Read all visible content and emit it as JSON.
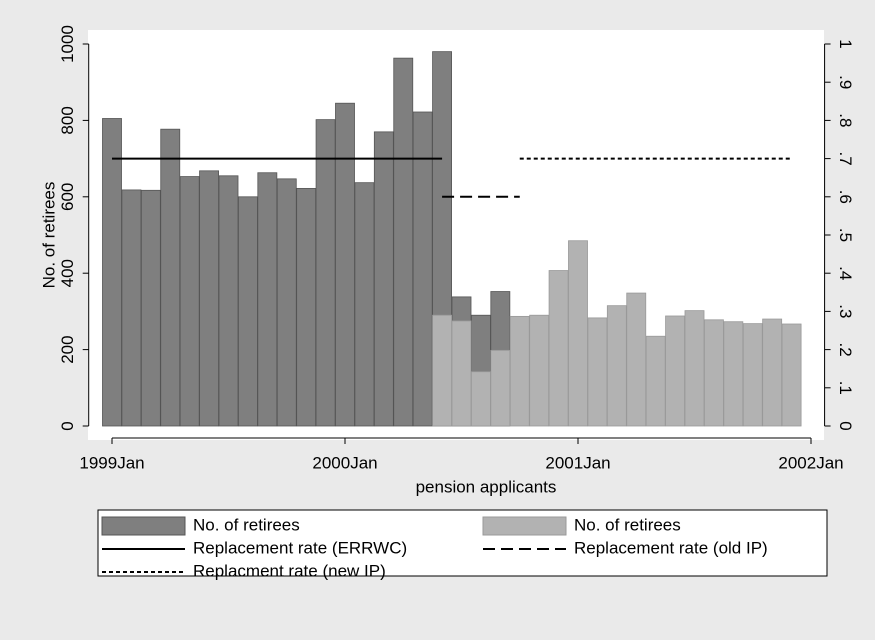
{
  "chart_data": {
    "type": "bar-line",
    "x_label": "pension applicants",
    "y_label": "No. of retirees",
    "x": [
      468,
      469,
      470,
      471,
      472,
      473,
      474,
      475,
      476,
      477,
      478,
      479,
      480,
      481,
      482,
      483,
      484,
      485,
      486,
      487,
      488,
      489,
      490,
      491,
      492,
      493,
      494,
      495,
      496,
      497,
      498,
      499,
      500,
      501,
      502,
      503
    ],
    "xlim": [
      466.8,
      504.7
    ],
    "xticks": [
      {
        "value": 468,
        "label": "1999Jan"
      },
      {
        "value": 480,
        "label": "2000Jan"
      },
      {
        "value": 492,
        "label": "2001Jan"
      },
      {
        "value": 504,
        "label": "2002Jan"
      }
    ],
    "ylim": [
      0,
      1000
    ],
    "yticks": [
      0,
      200,
      400,
      600,
      800,
      1000
    ],
    "y2lim": [
      0,
      1
    ],
    "y2ticks": [
      0,
      {
        "value": 0.1,
        "label": ".1"
      },
      {
        "value": 0.2,
        "label": ".2"
      },
      {
        "value": 0.3,
        "label": ".3"
      },
      {
        "value": 0.4,
        "label": ".4"
      },
      {
        "value": 0.5,
        "label": ".5"
      },
      {
        "value": 0.6,
        "label": ".6"
      },
      {
        "value": 0.7,
        "label": ".7"
      },
      {
        "value": 0.8,
        "label": ".8"
      },
      {
        "value": 0.9,
        "label": ".9"
      },
      1
    ],
    "series": [
      {
        "name": "No. of retirees",
        "kind": "bar",
        "color": "#7f7f7f",
        "values": [
          805,
          618,
          617,
          777,
          653,
          668,
          655,
          600,
          663,
          647,
          622,
          802,
          845,
          637,
          770,
          963,
          822,
          980,
          338,
          290,
          352,
          null,
          null,
          null,
          null,
          null,
          null,
          null,
          null,
          null,
          null,
          null,
          null,
          null,
          null,
          null
        ]
      },
      {
        "name": "No. of retirees",
        "kind": "bar",
        "color": "#b2b2b2",
        "values": [
          null,
          null,
          null,
          null,
          null,
          null,
          null,
          null,
          null,
          null,
          null,
          null,
          null,
          null,
          null,
          null,
          null,
          290,
          275,
          142,
          198,
          287,
          290,
          407,
          485,
          283,
          315,
          348,
          235,
          288,
          302,
          278,
          273,
          268,
          280,
          267
        ]
      },
      {
        "name": "Replacement rate (ERRWC)",
        "kind": "line",
        "axis": "y2",
        "color": "#000000",
        "dash": "solid",
        "values": [
          0.7,
          0.7,
          0.7,
          0.7,
          0.7,
          0.7,
          0.7,
          0.7,
          0.7,
          0.7,
          0.7,
          0.7,
          0.7,
          0.7,
          0.7,
          0.7,
          0.7,
          0.7,
          null,
          null,
          null,
          null,
          null,
          null,
          null,
          null,
          null,
          null,
          null,
          null,
          null,
          null,
          null,
          null,
          null,
          null
        ]
      },
      {
        "name": "Replacement rate (old IP)",
        "kind": "line",
        "axis": "y2",
        "color": "#000000",
        "dash": "dashed",
        "values": [
          null,
          null,
          null,
          null,
          null,
          null,
          null,
          null,
          null,
          null,
          null,
          null,
          null,
          null,
          null,
          null,
          null,
          0.6,
          0.6,
          0.6,
          0.6,
          0.6,
          null,
          null,
          null,
          null,
          null,
          null,
          null,
          null,
          null,
          null,
          null,
          null,
          null,
          null
        ]
      },
      {
        "name": "Replacment rate (new IP)",
        "kind": "line",
        "axis": "y2",
        "color": "#000000",
        "dash": "dotted",
        "values": [
          null,
          null,
          null,
          null,
          null,
          null,
          null,
          null,
          null,
          null,
          null,
          null,
          null,
          null,
          null,
          null,
          null,
          null,
          null,
          null,
          null,
          0.7,
          0.7,
          0.7,
          0.7,
          0.7,
          0.7,
          0.7,
          0.7,
          0.7,
          0.7,
          0.7,
          0.7,
          0.7,
          0.7,
          0.7
        ]
      }
    ],
    "legend": "bottom"
  }
}
